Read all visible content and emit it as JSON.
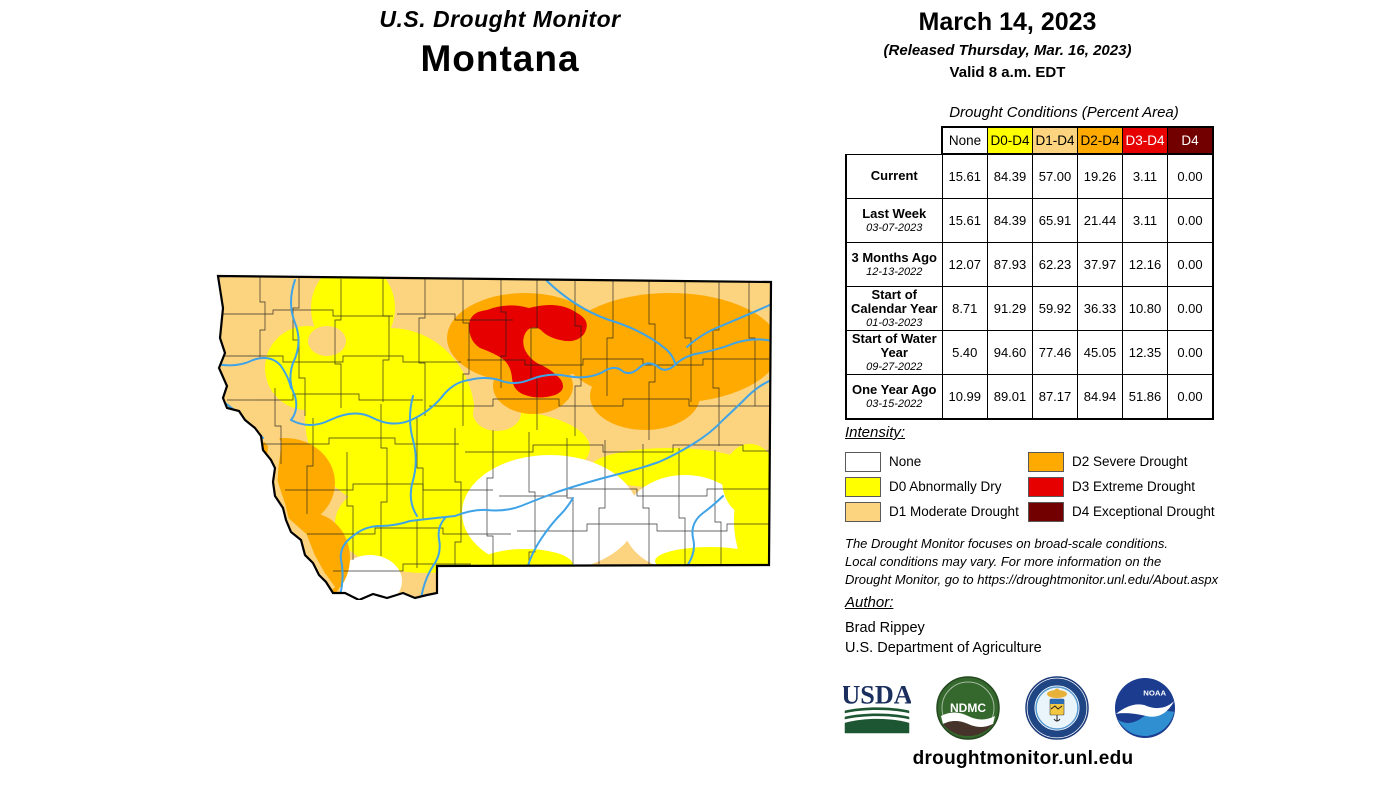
{
  "header": {
    "title": "U.S. Drought Monitor",
    "state": "Montana",
    "date": "March 14, 2023",
    "released": "(Released Thursday, Mar. 16, 2023)",
    "valid": "Valid 8 a.m. EDT"
  },
  "table": {
    "title": "Drought Conditions (Percent Area)",
    "columns": [
      "None",
      "D0-D4",
      "D1-D4",
      "D2-D4",
      "D3-D4",
      "D4"
    ],
    "column_colors": [
      "#ffffff",
      "#ffff00",
      "#fcd37f",
      "#ffaa00",
      "#e60000",
      "#730000"
    ],
    "column_text_colors": [
      "#000000",
      "#000000",
      "#000000",
      "#000000",
      "#ffffff",
      "#ffffff"
    ],
    "rows": [
      {
        "label": "Current",
        "sublabel": "",
        "values": [
          "15.61",
          "84.39",
          "57.00",
          "19.26",
          "3.11",
          "0.00"
        ]
      },
      {
        "label": "Last Week",
        "sublabel": "03-07-2023",
        "values": [
          "15.61",
          "84.39",
          "65.91",
          "21.44",
          "3.11",
          "0.00"
        ]
      },
      {
        "label": "3 Months Ago",
        "sublabel": "12-13-2022",
        "values": [
          "12.07",
          "87.93",
          "62.23",
          "37.97",
          "12.16",
          "0.00"
        ]
      },
      {
        "label": "Start of Calendar Year",
        "sublabel": "01-03-2023",
        "values": [
          "8.71",
          "91.29",
          "59.92",
          "36.33",
          "10.80",
          "0.00"
        ]
      },
      {
        "label": "Start of Water Year",
        "sublabel": "09-27-2022",
        "values": [
          "5.40",
          "94.60",
          "77.46",
          "45.05",
          "12.35",
          "0.00"
        ]
      },
      {
        "label": "One Year Ago",
        "sublabel": "03-15-2022",
        "values": [
          "10.99",
          "89.01",
          "87.17",
          "84.94",
          "51.86",
          "0.00"
        ]
      }
    ]
  },
  "legend": {
    "title": "Intensity:",
    "items": [
      {
        "label": "None",
        "color": "#ffffff"
      },
      {
        "label": "D0 Abnormally Dry",
        "color": "#ffff00"
      },
      {
        "label": "D1 Moderate Drought",
        "color": "#fcd37f"
      },
      {
        "label": "D2 Severe Drought",
        "color": "#ffaa00"
      },
      {
        "label": "D3 Extreme Drought",
        "color": "#e60000"
      },
      {
        "label": "D4 Exceptional Drought",
        "color": "#730000"
      }
    ]
  },
  "disclaimer": [
    "The Drought Monitor focuses on broad-scale conditions.",
    "Local conditions may vary. For more information on the",
    "Drought Monitor, go to https://droughtmonitor.unl.edu/About.aspx"
  ],
  "author": {
    "heading": "Author:",
    "name": "Brad Rippey",
    "org": "U.S. Department of Agriculture"
  },
  "logos": [
    {
      "label": "USDA"
    },
    {
      "label": "NDMC"
    },
    {
      "label": ""
    },
    {
      "label": "NOAA"
    }
  ],
  "footer": {
    "url": "droughtmonitor.unl.edu"
  },
  "map": {
    "region": "Montana",
    "colors": {
      "none": "#ffffff",
      "d0": "#ffff00",
      "d1": "#fcd37f",
      "d2": "#ffaa00",
      "d3": "#e60000",
      "d4": "#730000",
      "river": "#3fa3e8",
      "border": "#000000"
    }
  }
}
